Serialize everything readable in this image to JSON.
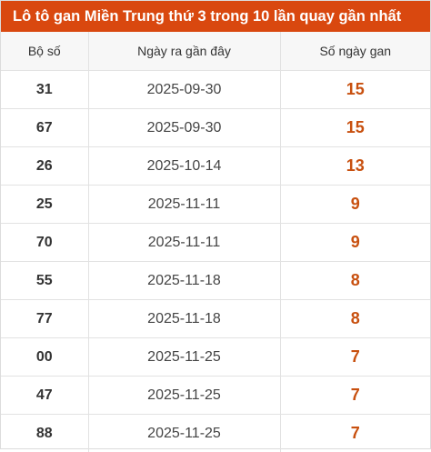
{
  "title": "Lô tô gan Miền Trung thứ 3 trong 10 lần quay gần nhất",
  "colors": {
    "header_bg": "#d9480f",
    "accent_text": "#c8500f"
  },
  "columns": [
    "Bộ số",
    "Ngày ra gần đây",
    "Số ngày gan"
  ],
  "rows": [
    {
      "number": "31",
      "date": "2025-09-30",
      "days": "15"
    },
    {
      "number": "67",
      "date": "2025-09-30",
      "days": "15"
    },
    {
      "number": "26",
      "date": "2025-10-14",
      "days": "13"
    },
    {
      "number": "25",
      "date": "2025-11-11",
      "days": "9"
    },
    {
      "number": "70",
      "date": "2025-11-11",
      "days": "9"
    },
    {
      "number": "55",
      "date": "2025-11-18",
      "days": "8"
    },
    {
      "number": "77",
      "date": "2025-11-18",
      "days": "8"
    },
    {
      "number": "00",
      "date": "2025-11-25",
      "days": "7"
    },
    {
      "number": "47",
      "date": "2025-11-25",
      "days": "7"
    },
    {
      "number": "88",
      "date": "2025-11-25",
      "days": "7"
    }
  ]
}
